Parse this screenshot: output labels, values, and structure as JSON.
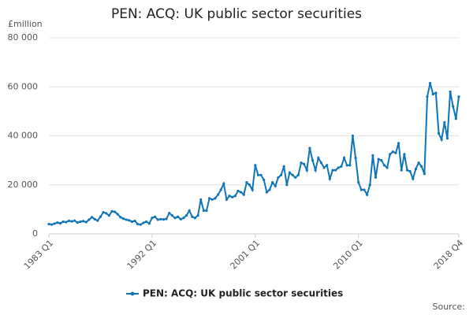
{
  "chart_data": {
    "type": "line",
    "title": "PEN: ACQ: UK public sector securities",
    "y_label": "£million",
    "source": "Source:",
    "categories": [
      "1983 Q1",
      null,
      null,
      null,
      null,
      null,
      null,
      null,
      null,
      null,
      null,
      null,
      null,
      null,
      null,
      null,
      null,
      null,
      null,
      null,
      null,
      null,
      null,
      null,
      null,
      null,
      null,
      null,
      null,
      null,
      null,
      null,
      null,
      null,
      null,
      null,
      "1992 Q1",
      null,
      null,
      null,
      null,
      null,
      null,
      null,
      null,
      null,
      null,
      null,
      null,
      null,
      null,
      null,
      null,
      null,
      null,
      null,
      null,
      null,
      null,
      null,
      null,
      null,
      null,
      null,
      null,
      null,
      null,
      null,
      null,
      null,
      null,
      null,
      "2001 Q1",
      null,
      null,
      null,
      null,
      null,
      null,
      null,
      null,
      null,
      null,
      null,
      null,
      null,
      null,
      null,
      null,
      null,
      null,
      null,
      null,
      null,
      null,
      null,
      null,
      null,
      null,
      null,
      null,
      null,
      null,
      null,
      null,
      null,
      null,
      null,
      "2010 Q1",
      null,
      null,
      null,
      null,
      null,
      null,
      null,
      null,
      null,
      null,
      null,
      null,
      null,
      null,
      null,
      null,
      null,
      null,
      null,
      null,
      null,
      null,
      null,
      null,
      null,
      null,
      null,
      null,
      null,
      null,
      null,
      null,
      null,
      null,
      "2018 Q4"
    ],
    "series": [
      {
        "name": "PEN: ACQ: UK public sector securities",
        "color": "#0f75b8",
        "values": [
          4000,
          3800,
          4200,
          4600,
          4300,
          5000,
          4800,
          5300,
          5100,
          5400,
          4600,
          5000,
          5200,
          4800,
          5800,
          6800,
          6000,
          5400,
          7000,
          8800,
          8400,
          7500,
          9200,
          9000,
          8000,
          6800,
          6200,
          5800,
          5500,
          5000,
          5300,
          4000,
          3800,
          4500,
          5000,
          4200,
          6500,
          7000,
          5800,
          6000,
          5900,
          6100,
          8500,
          7500,
          6500,
          7000,
          6000,
          6500,
          7500,
          9500,
          7000,
          6500,
          7500,
          14000,
          9500,
          9500,
          14500,
          14000,
          14500,
          16000,
          18000,
          20500,
          14000,
          15500,
          15000,
          15500,
          17500,
          17000,
          16000,
          21000,
          20000,
          18000,
          28000,
          24000,
          24000,
          22000,
          17000,
          18000,
          21000,
          19500,
          23000,
          24000,
          27500,
          20000,
          25000,
          24000,
          23000,
          24000,
          29000,
          28500,
          26000,
          35000,
          30000,
          26000,
          31000,
          29000,
          27000,
          28000,
          22500,
          26000,
          26000,
          27000,
          27500,
          31000,
          28000,
          28000,
          40000,
          31000,
          21000,
          18000,
          18000,
          16000,
          20000,
          32000,
          23000,
          30500,
          30000,
          28000,
          27000,
          32500,
          33500,
          33000,
          37000,
          26000,
          32500,
          26000,
          25500,
          22500,
          26500,
          29000,
          27500,
          24500,
          56000,
          61500,
          57000,
          57500,
          41000,
          38500,
          45500,
          39000,
          58000,
          52000,
          47000,
          56000
        ]
      }
    ],
    "ylim": [
      0,
      80000
    ],
    "yticks": [
      0,
      {
        "value": 20000,
        "label": "20 000"
      },
      {
        "value": 40000,
        "label": "40 000"
      },
      {
        "value": 60000,
        "label": "60 000"
      },
      {
        "value": 80000,
        "label": "80 000"
      }
    ],
    "grid": true,
    "legend": "bottom"
  }
}
